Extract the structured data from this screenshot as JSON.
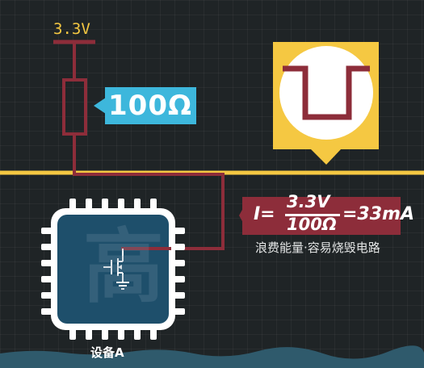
{
  "supply": {
    "voltage_label": "3.3V"
  },
  "resistor": {
    "value_label": "100Ω"
  },
  "formula": {
    "lhs": "I=",
    "numerator": "3.3V",
    "denominator": "100Ω",
    "rhs": "=33mA"
  },
  "note": {
    "text": "浪费能量·容易烧毁电路"
  },
  "chip": {
    "watermark": "高",
    "label": "设备A"
  },
  "colors": {
    "background": "#1f2426",
    "wire": "#8d2d3a",
    "rail": "#f5c842",
    "callout": "#3db7dc",
    "chip_body": "#1e4f6b",
    "high_badge": "#f5c842"
  }
}
